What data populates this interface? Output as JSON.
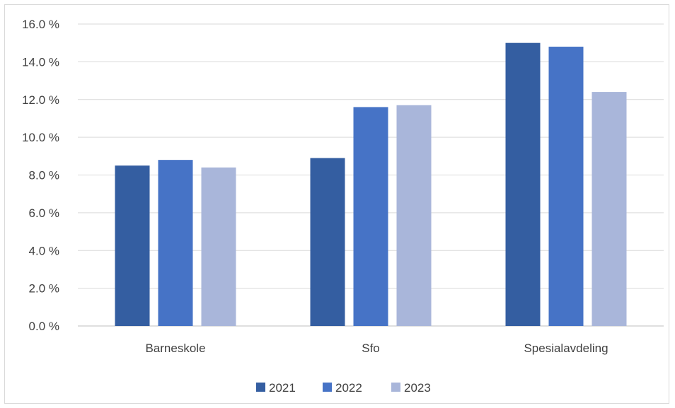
{
  "chart_data": {
    "type": "bar",
    "categories": [
      "Barneskole",
      "Sfo",
      "Spesialavdeling"
    ],
    "series": [
      {
        "name": "2021",
        "color": "#345ea1",
        "values": [
          8.5,
          8.9,
          15.0
        ]
      },
      {
        "name": "2022",
        "color": "#4673c6",
        "values": [
          8.8,
          11.6,
          14.8
        ]
      },
      {
        "name": "2023",
        "color": "#a9b6da",
        "values": [
          8.4,
          11.7,
          12.4
        ]
      }
    ],
    "ylim": [
      0,
      16
    ],
    "yticks": [
      0,
      2,
      4,
      6,
      8,
      10,
      12,
      14,
      16
    ],
    "ytick_labels": [
      "0.0 %",
      "2.0 %",
      "4.0 %",
      "6.0 %",
      "8.0 %",
      "10.0 %",
      "12.0 %",
      "14.0 %",
      "16.0 %"
    ],
    "grid": true,
    "legend": "bottom"
  }
}
